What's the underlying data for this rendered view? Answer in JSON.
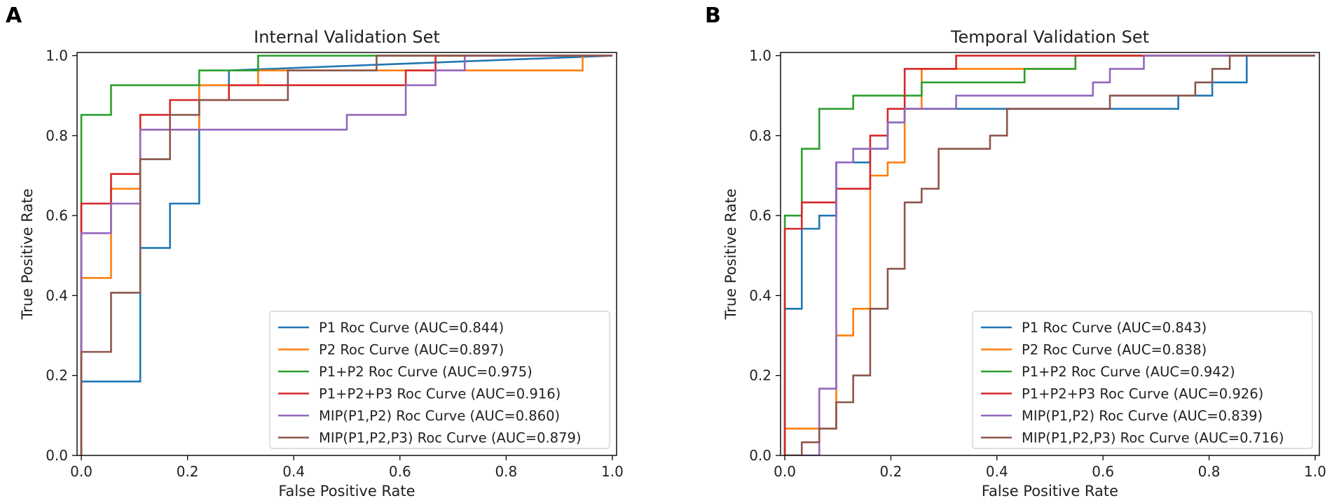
{
  "chart_data": [
    {
      "type": "line",
      "panel_label": "A",
      "title": "Internal Validation Set",
      "xlabel": "False Positive Rate",
      "ylabel": "True Positive Rate",
      "xlim": [
        0,
        1
      ],
      "ylim": [
        0,
        1
      ],
      "xticks": [
        "0.0",
        "0.2",
        "0.4",
        "0.6",
        "0.8",
        "1.0"
      ],
      "yticks": [
        "0.0",
        "0.2",
        "0.4",
        "0.6",
        "0.8",
        "1.0"
      ],
      "grid": false,
      "legend_position": "lower-right",
      "series": [
        {
          "name": "P1 Roc Curve (AUC=0.844)",
          "color": "#1f77b4",
          "x": [
            0,
            0,
            0.111,
            0.111,
            0.167,
            0.167,
            0.222,
            0.222,
            0.278,
            0.278,
            1.0
          ],
          "y": [
            0,
            0.185,
            0.185,
            0.519,
            0.519,
            0.63,
            0.63,
            0.926,
            0.926,
            0.963,
            1.0
          ]
        },
        {
          "name": "P2 Roc Curve (AUC=0.897)",
          "color": "#ff7f0e",
          "x": [
            0,
            0,
            0.056,
            0.056,
            0.111,
            0.111,
            0.222,
            0.222,
            0.333,
            0.333,
            0.944,
            0.944,
            1.0
          ],
          "y": [
            0,
            0.444,
            0.444,
            0.667,
            0.667,
            0.815,
            0.815,
            0.926,
            0.926,
            0.963,
            0.963,
            1.0,
            1.0
          ]
        },
        {
          "name": "P1+P2 Roc Curve (AUC=0.975)",
          "color": "#2ca02c",
          "x": [
            0,
            0,
            0.056,
            0.056,
            0.222,
            0.222,
            0.333,
            0.333,
            1.0
          ],
          "y": [
            0,
            0.852,
            0.852,
            0.926,
            0.926,
            0.963,
            0.963,
            1.0,
            1.0
          ]
        },
        {
          "name": "P1+P2+P3 Roc Curve (AUC=0.916)",
          "color": "#d62728",
          "x": [
            0,
            0,
            0.056,
            0.056,
            0.111,
            0.111,
            0.167,
            0.167,
            0.278,
            0.278,
            0.611,
            0.611,
            0.667,
            0.667,
            1.0
          ],
          "y": [
            0,
            0.63,
            0.63,
            0.704,
            0.704,
            0.852,
            0.852,
            0.889,
            0.889,
            0.926,
            0.926,
            0.963,
            0.963,
            1.0,
            1.0
          ]
        },
        {
          "name": "MIP(P1,P2) Roc Curve (AUC=0.860)",
          "color": "#9467bd",
          "x": [
            0,
            0,
            0.056,
            0.056,
            0.111,
            0.111,
            0.5,
            0.5,
            0.611,
            0.611,
            0.667,
            0.667,
            0.722,
            0.722,
            1.0
          ],
          "y": [
            0,
            0.556,
            0.556,
            0.63,
            0.63,
            0.815,
            0.815,
            0.852,
            0.852,
            0.926,
            0.926,
            0.963,
            0.963,
            1.0,
            1.0
          ]
        },
        {
          "name": "MIP(P1,P2,P3) Roc Curve (AUC=0.879)",
          "color": "#8c564b",
          "x": [
            0,
            0,
            0.056,
            0.056,
            0.111,
            0.111,
            0.167,
            0.167,
            0.222,
            0.222,
            0.389,
            0.389,
            0.556,
            0.556,
            1.0
          ],
          "y": [
            0,
            0.259,
            0.259,
            0.407,
            0.407,
            0.741,
            0.741,
            0.852,
            0.852,
            0.889,
            0.889,
            0.963,
            0.963,
            1.0,
            1.0
          ]
        }
      ]
    },
    {
      "type": "line",
      "panel_label": "B",
      "title": "Temporal Validation Set",
      "xlabel": "False Positive Rate",
      "ylabel": "True Positive Rate",
      "xlim": [
        0,
        1
      ],
      "ylim": [
        0,
        1
      ],
      "xticks": [
        "0.0",
        "0.2",
        "0.4",
        "0.6",
        "0.8",
        "1.0"
      ],
      "yticks": [
        "0.0",
        "0.2",
        "0.4",
        "0.6",
        "0.8",
        "1.0"
      ],
      "grid": false,
      "legend_position": "lower-right",
      "series": [
        {
          "name": "P1 Roc Curve (AUC=0.843)",
          "color": "#1f77b4",
          "x": [
            0,
            0,
            0.032,
            0.032,
            0.065,
            0.065,
            0.097,
            0.097,
            0.161,
            0.161,
            0.194,
            0.194,
            0.226,
            0.226,
            0.742,
            0.742,
            0.806,
            0.806,
            0.871,
            0.871,
            1.0
          ],
          "y": [
            0,
            0.367,
            0.367,
            0.567,
            0.567,
            0.6,
            0.6,
            0.733,
            0.733,
            0.767,
            0.767,
            0.833,
            0.833,
            0.867,
            0.867,
            0.9,
            0.9,
            0.933,
            0.933,
            1.0,
            1.0
          ]
        },
        {
          "name": "P2 Roc Curve (AUC=0.838)",
          "color": "#ff7f0e",
          "x": [
            0,
            0,
            0.097,
            0.097,
            0.129,
            0.129,
            0.161,
            0.161,
            0.194,
            0.194,
            0.226,
            0.226,
            0.258,
            0.258,
            0.452,
            0.452,
            0.548,
            0.548,
            1.0
          ],
          "y": [
            0,
            0.067,
            0.067,
            0.3,
            0.3,
            0.367,
            0.367,
            0.7,
            0.7,
            0.733,
            0.733,
            0.867,
            0.867,
            0.967,
            0.967,
            0.967,
            0.967,
            1.0,
            1.0
          ]
        },
        {
          "name": "P1+P2 Roc Curve (AUC=0.942)",
          "color": "#2ca02c",
          "x": [
            0,
            0,
            0.032,
            0.032,
            0.065,
            0.065,
            0.129,
            0.129,
            0.226,
            0.226,
            0.258,
            0.258,
            0.452,
            0.452,
            0.548,
            0.548,
            1.0
          ],
          "y": [
            0,
            0.6,
            0.6,
            0.767,
            0.767,
            0.867,
            0.867,
            0.9,
            0.9,
            0.9,
            0.9,
            0.933,
            0.933,
            0.967,
            0.967,
            1.0,
            1.0
          ]
        },
        {
          "name": "P1+P2+P3 Roc Curve (AUC=0.926)",
          "color": "#d62728",
          "x": [
            0,
            0,
            0.032,
            0.032,
            0.097,
            0.097,
            0.161,
            0.161,
            0.194,
            0.194,
            0.226,
            0.226,
            0.323,
            0.323,
            1.0
          ],
          "y": [
            0,
            0.567,
            0.567,
            0.633,
            0.633,
            0.667,
            0.667,
            0.8,
            0.8,
            0.867,
            0.867,
            0.967,
            0.967,
            1.0,
            1.0
          ]
        },
        {
          "name": "MIP(P1,P2) Roc Curve (AUC=0.839)",
          "color": "#9467bd",
          "x": [
            0,
            0,
            0.065,
            0.065,
            0.097,
            0.097,
            0.129,
            0.129,
            0.194,
            0.194,
            0.226,
            0.226,
            0.323,
            0.323,
            0.581,
            0.581,
            0.613,
            0.613,
            0.677,
            0.677,
            1.0
          ],
          "y": [
            0,
            0,
            0,
            0.167,
            0.167,
            0.733,
            0.733,
            0.767,
            0.767,
            0.833,
            0.833,
            0.867,
            0.867,
            0.9,
            0.9,
            0.933,
            0.933,
            0.967,
            0.967,
            1.0,
            1.0
          ]
        },
        {
          "name": "MIP(P1,P2,P3) Roc Curve (AUC=0.716)",
          "color": "#8c564b",
          "x": [
            0,
            0.032,
            0.032,
            0.065,
            0.065,
            0.097,
            0.097,
            0.129,
            0.129,
            0.161,
            0.161,
            0.194,
            0.194,
            0.226,
            0.226,
            0.258,
            0.258,
            0.29,
            0.29,
            0.387,
            0.387,
            0.419,
            0.419,
            0.452,
            0.452,
            0.613,
            0.613,
            0.774,
            0.774,
            0.806,
            0.806,
            0.839,
            0.839,
            1.0
          ],
          "y": [
            0,
            0,
            0.033,
            0.033,
            0.067,
            0.067,
            0.133,
            0.133,
            0.2,
            0.2,
            0.367,
            0.367,
            0.467,
            0.467,
            0.633,
            0.633,
            0.667,
            0.667,
            0.767,
            0.767,
            0.8,
            0.8,
            0.867,
            0.867,
            0.867,
            0.867,
            0.9,
            0.9,
            0.933,
            0.933,
            0.967,
            0.967,
            1.0,
            1.0
          ]
        }
      ]
    }
  ]
}
